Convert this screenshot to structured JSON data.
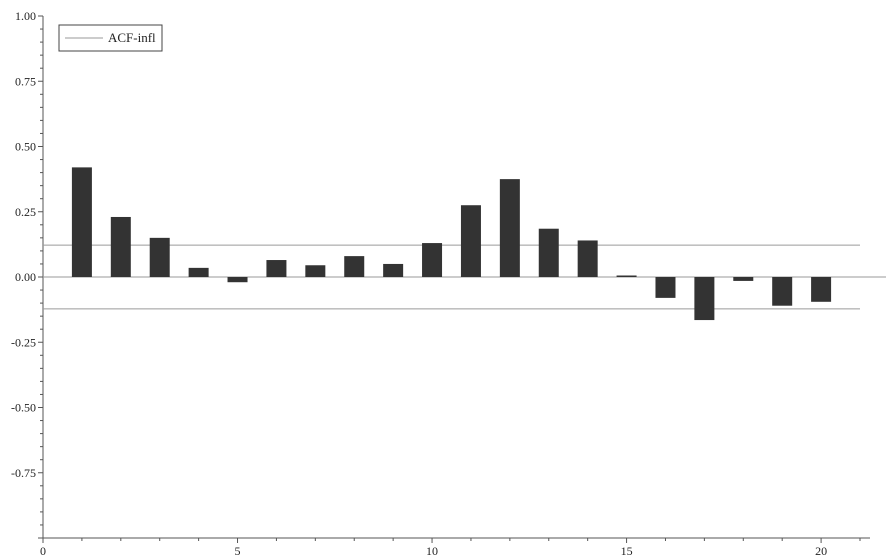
{
  "chart_data": {
    "type": "bar",
    "x": [
      1,
      2,
      3,
      4,
      5,
      6,
      7,
      8,
      9,
      10,
      11,
      12,
      13,
      14,
      15,
      16,
      17,
      18,
      19,
      20
    ],
    "series": [
      {
        "name": "ACF-infl",
        "values": [
          0.42,
          0.23,
          0.15,
          0.035,
          -0.02,
          0.065,
          0.045,
          0.08,
          0.05,
          0.13,
          0.275,
          0.375,
          0.185,
          0.14,
          0.005,
          -0.08,
          -0.165,
          -0.015,
          -0.11,
          -0.095
        ]
      }
    ],
    "confidence_band": [
      0.122,
      -0.122
    ],
    "xlim": [
      0,
      21
    ],
    "ylim": [
      -1,
      1
    ],
    "x_ticks": [
      "0",
      "5",
      "10",
      "15",
      "20"
    ],
    "y_ticks": [
      "1.00",
      "0.75",
      "0.50",
      "0.25",
      "0.00",
      "-0.25",
      "-0.50",
      "-0.75"
    ],
    "legend": {
      "position": "top-left",
      "entries": [
        "ACF-infl"
      ]
    },
    "grid": false,
    "colors": {
      "bar": "#333333",
      "reference_line": "#9a9a9a",
      "axis": "#555555"
    }
  }
}
